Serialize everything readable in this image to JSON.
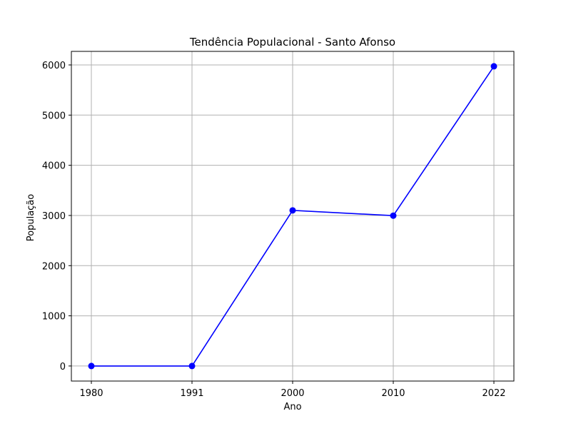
{
  "chart_data": {
    "type": "line",
    "title": "Tendência Populacional - Santo Afonso",
    "xlabel": "Ano",
    "ylabel": "População",
    "categories": [
      "1980",
      "1991",
      "2000",
      "2010",
      "2022"
    ],
    "series": [
      {
        "values": [
          0,
          0,
          3101,
          2996,
          5973
        ]
      }
    ],
    "yticks": [
      0,
      1000,
      2000,
      3000,
      4000,
      5000,
      6000
    ],
    "ylim": [
      -300,
      6270
    ],
    "grid": true,
    "legend": "none",
    "line_color": "#0000ff",
    "grid_color": "#b0b0b0"
  }
}
